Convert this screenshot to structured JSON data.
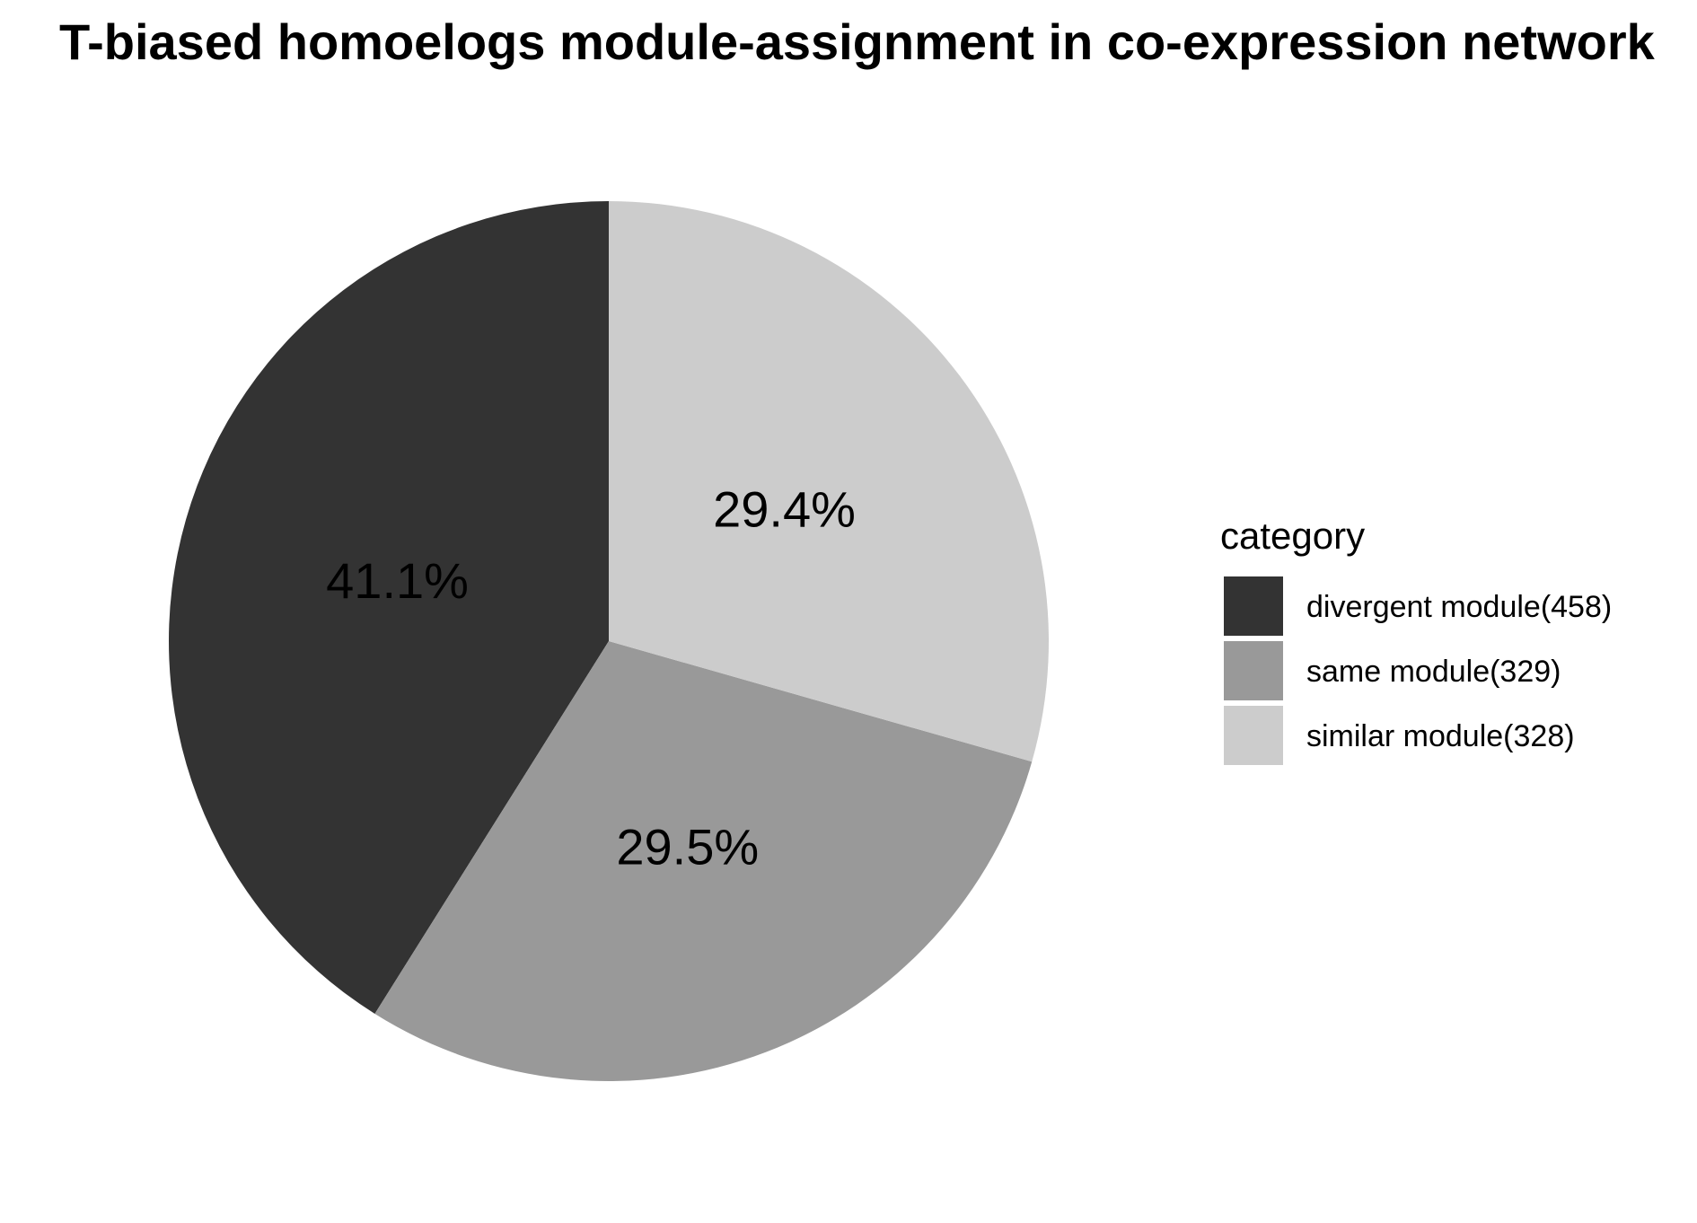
{
  "chart_data": {
    "type": "pie",
    "title": "T-biased homoelogs module-assignment in co-expression network",
    "legend_title": "category",
    "legend_position": "right",
    "slices": [
      {
        "label": "divergent module(458)",
        "value": 458,
        "percent_label": "41.1%",
        "color": "#333333"
      },
      {
        "label": "same module(329)",
        "value": 329,
        "percent_label": "29.5%",
        "color": "#999999"
      },
      {
        "label": "similar module(328)",
        "value": 328,
        "percent_label": "29.4%",
        "color": "#cccccc"
      }
    ]
  }
}
